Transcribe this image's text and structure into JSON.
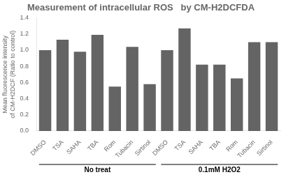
{
  "chart_data": {
    "type": "bar",
    "title": "Measurement of intracellular ROS   by CM-H2DCFDA",
    "ylabel": "Mean fluorescence intensity\nof CM-H2DCF (Ratio to control)",
    "categories": [
      "DMSO",
      "TSA",
      "SAHA",
      "TBA",
      "Rom",
      "Tubacin",
      "Sirtinol",
      "DMSO",
      "TSA",
      "SAHA",
      "TBA",
      "Rom",
      "Tubacin",
      "Sirtinol"
    ],
    "series": [
      {
        "name": "No treat",
        "color": "#646464",
        "values": [
          1.0,
          1.13,
          0.98,
          1.19,
          0.55,
          1.04,
          0.58,
          null,
          null,
          null,
          null,
          null,
          null,
          null
        ]
      },
      {
        "name": "0.1mM H2O2",
        "color": "#646464",
        "values": [
          null,
          null,
          null,
          null,
          null,
          null,
          null,
          1.0,
          1.27,
          0.82,
          0.82,
          0.65,
          1.1,
          1.1
        ]
      }
    ],
    "ylim": [
      0,
      1.4
    ],
    "yticks": [
      {
        "value": 0,
        "label": "0.0"
      },
      0.2,
      0.4,
      0.6,
      0.8,
      {
        "value": 1,
        "label": "1.0"
      },
      1.2,
      1.4
    ],
    "grid": false
  }
}
